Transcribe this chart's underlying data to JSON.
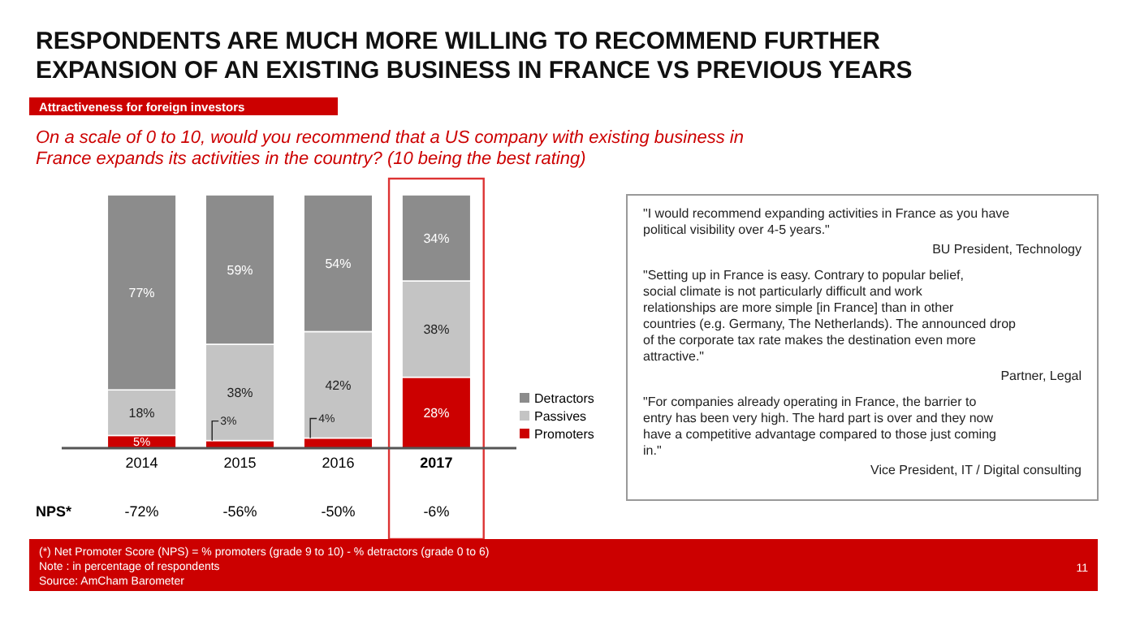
{
  "chart_data": {
    "type": "bar",
    "stacked": true,
    "title": "RESPONDENTS ARE MUCH MORE WILLING TO RECOMMEND FURTHER EXPANSION OF AN EXISTING BUSINESS IN FRANCE VS PREVIOUS YEARS",
    "subtitle": "On a scale of 0 to 10, would you recommend that a US company with existing business in France expands its activities in the country? (10 being the best rating)",
    "categories": [
      "2014",
      "2015",
      "2016",
      "2017"
    ],
    "series": [
      {
        "name": "Promoters",
        "color": "#cc0000",
        "values": [
          5,
          3,
          4,
          28
        ],
        "value_labels": [
          "5%",
          "3%",
          "4%",
          "28%"
        ]
      },
      {
        "name": "Passives",
        "color": "#c4c4c4",
        "values": [
          18,
          38,
          42,
          38
        ],
        "value_labels": [
          "18%",
          "38%",
          "42%",
          "38%"
        ]
      },
      {
        "name": "Detractors",
        "color": "#8c8c8c",
        "values": [
          77,
          59,
          54,
          34
        ],
        "value_labels": [
          "77%",
          "59%",
          "54%",
          "34%"
        ]
      }
    ],
    "legend": "right",
    "annotations": [
      "Attractiveness for foreign investors",
      "NPS*",
      "-72%",
      "-56%",
      "-50%",
      "-6%",
      "\"I would recommend expanding activities in France as you have political visibility over 4-5 years.\"",
      "BU President, Technology",
      "\"Setting up in France is easy. Contrary to popular belief, social climate is not particularly difficult and work relationships are more simple [in France] than in other countries (e.g. Germany, The Netherlands). The announced drop of the corporate tax rate makes the destination even more attractive.\"",
      "Partner, Legal",
      "\"For companies already operating in France, the barrier to entry has been very high. The hard part is over and they now have a competitive advantage compared to those just coming in.\"",
      "Vice President, IT / Digital consulting",
      "(*) Net Promoter Score (NPS) = % promoters (grade 9 to 10) - % detractors (grade 0 to 6)",
      "Note : in percentage of respondents",
      "Source: AmCham Barometer",
      "11"
    ]
  }
}
